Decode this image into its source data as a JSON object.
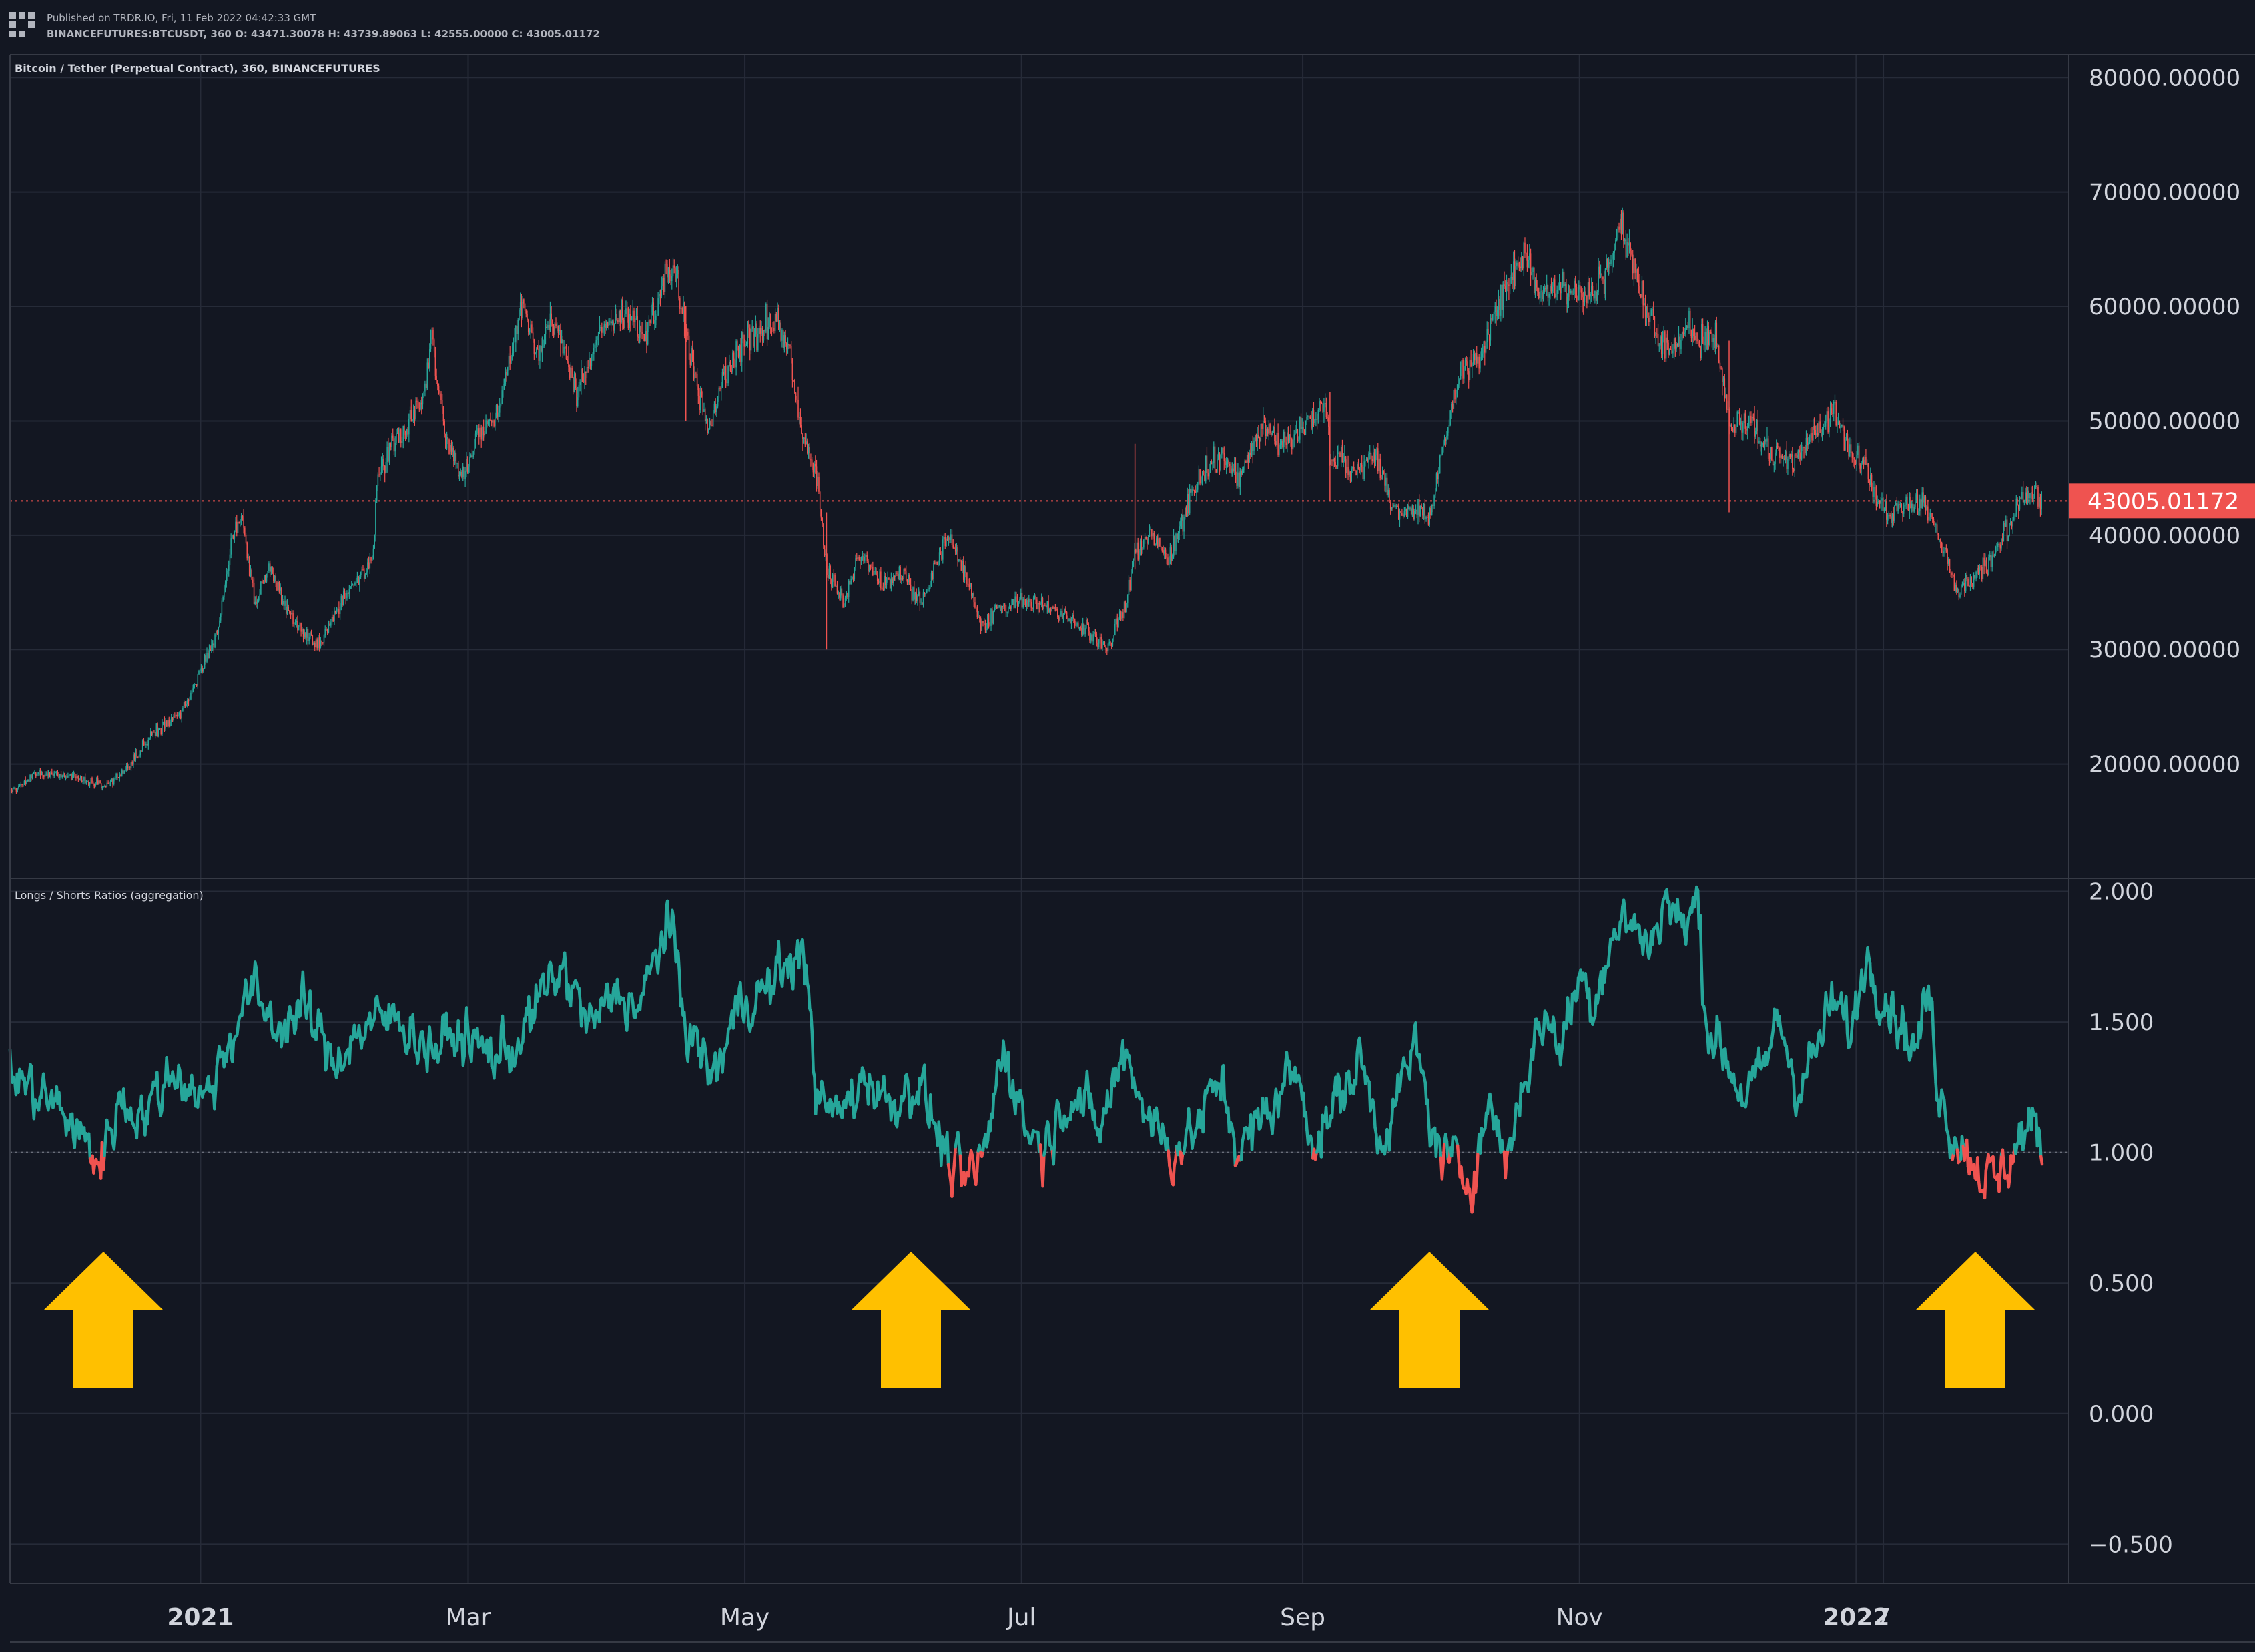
{
  "header": {
    "publish_line": "Published on TRDR.IO, Fri, 11 Feb 2022 04:42:33 GMT",
    "ohlc_line": "BINANCEFUTURES:BTCUSDT, 360 O: 43471.30078 H: 43739.89063 L: 42555.00000 C: 43005.01172"
  },
  "colors": {
    "background": "#131722",
    "grid": "#262b38",
    "up": "#26a69a",
    "down": "#ef5350",
    "arrow": "#ffc000",
    "text": "#d1d4dc"
  },
  "chart_data": [
    {
      "type": "candlestick",
      "title": "Bitcoin / Tether (Perpetual Contract), 360, BINANCEFUTURES",
      "ylim": [
        10000,
        82000
      ],
      "y_ticks": [
        "80000.00000",
        "70000.00000",
        "60000.00000",
        "50000.00000",
        "40000.00000",
        "30000.00000",
        "20000.00000"
      ],
      "last_price_label": "43005.01172",
      "last_price": 43005.01172,
      "x_tick_labels": [
        "2021",
        "Mar",
        "May",
        "Jul",
        "Sep",
        "Nov",
        "2022",
        "7"
      ],
      "x_range": [
        "2020-11-20",
        "2022-02-11"
      ],
      "x_ticks": [
        "2021-01-01",
        "2021-03-01",
        "2021-05-01",
        "2021-07-01",
        "2021-09-01",
        "2021-11-01",
        "2022-01-01",
        "2022-01-07"
      ],
      "anchors": [
        [
          "2020-11-20",
          17500
        ],
        [
          "2020-11-26",
          19200
        ],
        [
          "2020-12-05",
          18800
        ],
        [
          "2020-12-11",
          18000
        ],
        [
          "2020-12-16",
          19800
        ],
        [
          "2020-12-22",
          23000
        ],
        [
          "2020-12-28",
          24500
        ],
        [
          "2021-01-02",
          29000
        ],
        [
          "2021-01-05",
          32000
        ],
        [
          "2021-01-08",
          40000
        ],
        [
          "2021-01-10",
          41500
        ],
        [
          "2021-01-13",
          34000
        ],
        [
          "2021-01-16",
          37000
        ],
        [
          "2021-01-22",
          32000
        ],
        [
          "2021-01-27",
          30500
        ],
        [
          "2021-02-02",
          34500
        ],
        [
          "2021-02-08",
          38000
        ],
        [
          "2021-02-09",
          46000
        ],
        [
          "2021-02-14",
          48500
        ],
        [
          "2021-02-19",
          52000
        ],
        [
          "2021-02-21",
          57500
        ],
        [
          "2021-02-24",
          48000
        ],
        [
          "2021-02-28",
          45000
        ],
        [
          "2021-03-03",
          49000
        ],
        [
          "2021-03-07",
          50500
        ],
        [
          "2021-03-10",
          55000
        ],
        [
          "2021-03-13",
          60500
        ],
        [
          "2021-03-16",
          56000
        ],
        [
          "2021-03-20",
          59000
        ],
        [
          "2021-03-25",
          52000
        ],
        [
          "2021-03-30",
          58000
        ],
        [
          "2021-04-05",
          59500
        ],
        [
          "2021-04-10",
          58000
        ],
        [
          "2021-04-14",
          63500
        ],
        [
          "2021-04-16",
          62500
        ],
        [
          "2021-04-19",
          56000
        ],
        [
          "2021-04-23",
          49000
        ],
        [
          "2021-04-26",
          53500
        ],
        [
          "2021-05-01",
          57000
        ],
        [
          "2021-05-04",
          58000
        ],
        [
          "2021-05-08",
          58500
        ],
        [
          "2021-05-11",
          56000
        ],
        [
          "2021-05-13",
          50000
        ],
        [
          "2021-05-17",
          45000
        ],
        [
          "2021-05-19",
          37000
        ],
        [
          "2021-05-23",
          34000
        ],
        [
          "2021-05-26",
          38500
        ],
        [
          "2021-05-31",
          36000
        ],
        [
          "2021-06-05",
          36500
        ],
        [
          "2021-06-09",
          34000
        ],
        [
          "2021-06-14",
          39500
        ],
        [
          "2021-06-15",
          40000
        ],
        [
          "2021-06-20",
          35000
        ],
        [
          "2021-06-22",
          32000
        ],
        [
          "2021-06-26",
          33500
        ],
        [
          "2021-07-02",
          34500
        ],
        [
          "2021-07-08",
          33500
        ],
        [
          "2021-07-15",
          32000
        ],
        [
          "2021-07-20",
          30000
        ],
        [
          "2021-07-24",
          34000
        ],
        [
          "2021-07-26",
          38500
        ],
        [
          "2021-07-29",
          40000
        ],
        [
          "2021-08-03",
          38000
        ],
        [
          "2021-08-06",
          42500
        ],
        [
          "2021-08-10",
          45500
        ],
        [
          "2021-08-14",
          47000
        ],
        [
          "2021-08-18",
          45000
        ],
        [
          "2021-08-23",
          49500
        ],
        [
          "2021-08-27",
          48000
        ],
        [
          "2021-09-02",
          49500
        ],
        [
          "2021-09-06",
          52000
        ],
        [
          "2021-09-07",
          47000
        ],
        [
          "2021-09-12",
          45500
        ],
        [
          "2021-09-17",
          47500
        ],
        [
          "2021-09-21",
          42000
        ],
        [
          "2021-09-25",
          42500
        ],
        [
          "2021-09-29",
          41500
        ],
        [
          "2021-10-02",
          48000
        ],
        [
          "2021-10-06",
          54500
        ],
        [
          "2021-10-10",
          55500
        ],
        [
          "2021-10-15",
          61000
        ],
        [
          "2021-10-20",
          65000
        ],
        [
          "2021-10-23",
          61000
        ],
        [
          "2021-10-28",
          62000
        ],
        [
          "2021-11-02",
          61000
        ],
        [
          "2021-11-06",
          62000
        ],
        [
          "2021-11-10",
          67000
        ],
        [
          "2021-11-13",
          64000
        ],
        [
          "2021-11-16",
          60000
        ],
        [
          "2021-11-18",
          57500
        ],
        [
          "2021-11-22",
          56500
        ],
        [
          "2021-11-25",
          58000
        ],
        [
          "2021-11-28",
          57000
        ],
        [
          "2021-12-01",
          57500
        ],
        [
          "2021-12-04",
          49500
        ],
        [
          "2021-12-08",
          50000
        ],
        [
          "2021-12-13",
          47500
        ],
        [
          "2021-12-18",
          46500
        ],
        [
          "2021-12-23",
          49000
        ],
        [
          "2021-12-27",
          50500
        ],
        [
          "2021-12-31",
          47000
        ],
        [
          "2022-01-03",
          46500
        ],
        [
          "2022-01-05",
          43500
        ],
        [
          "2022-01-08",
          41800
        ],
        [
          "2022-01-12",
          42500
        ],
        [
          "2022-01-16",
          43000
        ],
        [
          "2022-01-21",
          38000
        ],
        [
          "2022-01-23",
          35000
        ],
        [
          "2022-01-27",
          36500
        ],
        [
          "2022-02-01",
          38500
        ],
        [
          "2022-02-04",
          41000
        ],
        [
          "2022-02-08",
          44000
        ],
        [
          "2022-02-11",
          43005
        ]
      ]
    },
    {
      "type": "line",
      "title": "Longs / Shorts Ratios (aggregation)",
      "ylim": [
        -0.65,
        2.05
      ],
      "y_ticks": [
        "2.000",
        "1.500",
        "1.000",
        "0.500",
        "0.000",
        "−0.500"
      ],
      "reference_line": 1.0,
      "series_colors": {
        "above_1": "#26a69a",
        "below_1": "#ef5350"
      },
      "anchors": [
        [
          "2020-11-20",
          1.3
        ],
        [
          "2020-11-26",
          1.23
        ],
        [
          "2020-12-02",
          1.15
        ],
        [
          "2020-12-06",
          1.05
        ],
        [
          "2020-12-10",
          0.96
        ],
        [
          "2020-12-14",
          1.2
        ],
        [
          "2020-12-20",
          1.15
        ],
        [
          "2020-12-26",
          1.32
        ],
        [
          "2021-01-02",
          1.2
        ],
        [
          "2021-01-06",
          1.38
        ],
        [
          "2021-01-12",
          1.62
        ],
        [
          "2021-01-18",
          1.48
        ],
        [
          "2021-01-24",
          1.55
        ],
        [
          "2021-01-30",
          1.35
        ],
        [
          "2021-02-06",
          1.48
        ],
        [
          "2021-02-14",
          1.52
        ],
        [
          "2021-02-20",
          1.4
        ],
        [
          "2021-02-28",
          1.45
        ],
        [
          "2021-03-06",
          1.37
        ],
        [
          "2021-03-12",
          1.42
        ],
        [
          "2021-03-18",
          1.62
        ],
        [
          "2021-03-22",
          1.7
        ],
        [
          "2021-03-28",
          1.48
        ],
        [
          "2021-04-03",
          1.62
        ],
        [
          "2021-04-08",
          1.55
        ],
        [
          "2021-04-14",
          1.9
        ],
        [
          "2021-04-18",
          1.5
        ],
        [
          "2021-04-24",
          1.28
        ],
        [
          "2021-04-30",
          1.58
        ],
        [
          "2021-05-06",
          1.62
        ],
        [
          "2021-05-12",
          1.76
        ],
        [
          "2021-05-15",
          1.68
        ],
        [
          "2021-05-17",
          1.18
        ],
        [
          "2021-05-22",
          1.15
        ],
        [
          "2021-05-28",
          1.3
        ],
        [
          "2021-06-02",
          1.18
        ],
        [
          "2021-06-08",
          1.28
        ],
        [
          "2021-06-12",
          1.1
        ],
        [
          "2021-06-16",
          0.92
        ],
        [
          "2021-06-19",
          0.88
        ],
        [
          "2021-06-23",
          1.0
        ],
        [
          "2021-06-27",
          1.42
        ],
        [
          "2021-07-02",
          1.1
        ],
        [
          "2021-07-06",
          1.02
        ],
        [
          "2021-07-12",
          1.25
        ],
        [
          "2021-07-18",
          1.08
        ],
        [
          "2021-07-24",
          1.4
        ],
        [
          "2021-07-28",
          1.18
        ],
        [
          "2021-08-03",
          1.0
        ],
        [
          "2021-08-08",
          1.08
        ],
        [
          "2021-08-14",
          1.28
        ],
        [
          "2021-08-18",
          1.0
        ],
        [
          "2021-08-24",
          1.15
        ],
        [
          "2021-08-30",
          1.32
        ],
        [
          "2021-09-04",
          1.04
        ],
        [
          "2021-09-08",
          1.18
        ],
        [
          "2021-09-14",
          1.35
        ],
        [
          "2021-09-18",
          1.05
        ],
        [
          "2021-09-22",
          1.22
        ],
        [
          "2021-09-26",
          1.4
        ],
        [
          "2021-09-30",
          1.05
        ],
        [
          "2021-10-04",
          0.95
        ],
        [
          "2021-10-08",
          0.9
        ],
        [
          "2021-10-12",
          1.18
        ],
        [
          "2021-10-16",
          0.98
        ],
        [
          "2021-10-20",
          1.3
        ],
        [
          "2021-10-24",
          1.52
        ],
        [
          "2021-10-28",
          1.42
        ],
        [
          "2021-11-01",
          1.68
        ],
        [
          "2021-11-04",
          1.58
        ],
        [
          "2021-11-08",
          1.82
        ],
        [
          "2021-11-12",
          1.9
        ],
        [
          "2021-11-16",
          1.78
        ],
        [
          "2021-11-20",
          1.98
        ],
        [
          "2021-11-24",
          1.85
        ],
        [
          "2021-11-27",
          1.97
        ],
        [
          "2021-11-29",
          1.5
        ],
        [
          "2021-12-03",
          1.38
        ],
        [
          "2021-12-07",
          1.22
        ],
        [
          "2021-12-11",
          1.28
        ],
        [
          "2021-12-15",
          1.52
        ],
        [
          "2021-12-19",
          1.25
        ],
        [
          "2021-12-23",
          1.38
        ],
        [
          "2021-12-27",
          1.58
        ],
        [
          "2021-12-31",
          1.45
        ],
        [
          "2022-01-03",
          1.76
        ],
        [
          "2022-01-07",
          1.62
        ],
        [
          "2022-01-11",
          1.5
        ],
        [
          "2022-01-14",
          1.38
        ],
        [
          "2022-01-17",
          1.62
        ],
        [
          "2022-01-19",
          1.28
        ],
        [
          "2022-01-22",
          1.08
        ],
        [
          "2022-01-25",
          1.02
        ],
        [
          "2022-01-29",
          0.92
        ],
        [
          "2022-02-01",
          0.88
        ],
        [
          "2022-02-03",
          0.95
        ],
        [
          "2022-02-06",
          1.05
        ],
        [
          "2022-02-08",
          1.1
        ],
        [
          "2022-02-11",
          1.05
        ]
      ]
    }
  ]
}
